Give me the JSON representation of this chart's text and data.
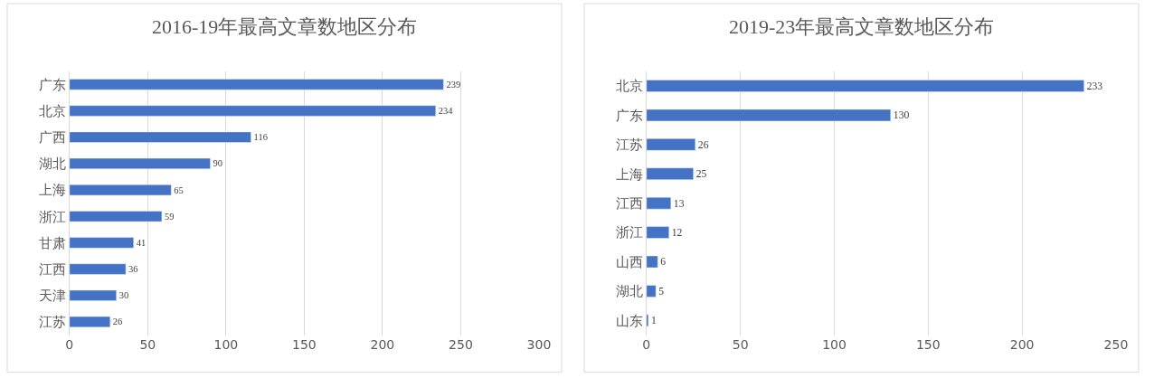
{
  "chart_data": [
    {
      "type": "bar",
      "orientation": "horizontal",
      "title": "2016-19年最高文章数地区分布",
      "categories": [
        "广东",
        "北京",
        "广西",
        "湖北",
        "上海",
        "浙江",
        "甘肃",
        "江西",
        "天津",
        "江苏"
      ],
      "values": [
        239,
        234,
        116,
        90,
        65,
        59,
        41,
        36,
        30,
        26
      ],
      "color": "#4472c4",
      "xlim": [
        0,
        300
      ],
      "xticks": [
        0,
        50,
        100,
        150,
        200,
        250,
        300
      ],
      "grid": "x",
      "data_labels": true
    },
    {
      "type": "bar",
      "orientation": "horizontal",
      "title": "2019-23年最高文章数地区分布",
      "categories": [
        "北京",
        "广东",
        "江苏",
        "上海",
        "江西",
        "浙江",
        "山西",
        "湖北",
        "山东"
      ],
      "values": [
        233,
        130,
        26,
        25,
        13,
        12,
        6,
        5,
        1
      ],
      "color": "#4472c4",
      "xlim": [
        0,
        250
      ],
      "xticks": [
        0,
        50,
        100,
        150,
        200,
        250
      ],
      "grid": "x",
      "data_labels": true
    }
  ]
}
